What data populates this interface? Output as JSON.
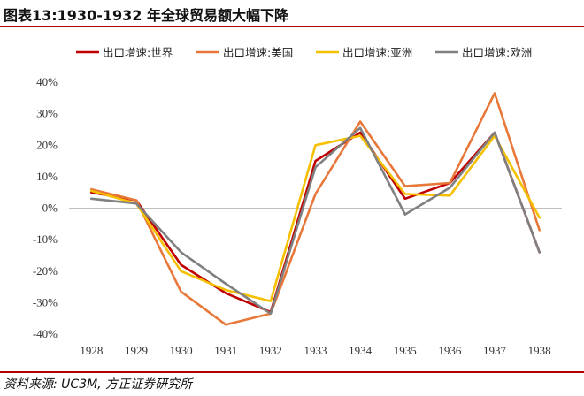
{
  "header": {
    "title": "图表13:1930-1932 年全球贸易额大幅下降"
  },
  "footer": {
    "source": "资料来源: UC3M, 方正证券研究所"
  },
  "chart_data": {
    "type": "line",
    "title": "",
    "xlabel": "",
    "ylabel": "",
    "x": [
      "1928",
      "1929",
      "1930",
      "1931",
      "1932",
      "1933",
      "1934",
      "1935",
      "1936",
      "1937",
      "1938"
    ],
    "ylim": [
      -40,
      40
    ],
    "yticks": [
      "40%",
      "30%",
      "20%",
      "10%",
      "0%",
      "-10%",
      "-20%",
      "-30%",
      "-40%"
    ],
    "legend_position": "top",
    "grid": false,
    "series": [
      {
        "name": "出口增速:世界",
        "color": "#c00000",
        "values": [
          5,
          2.5,
          -18,
          -27,
          -33,
          15,
          24,
          3,
          8,
          24,
          -14
        ]
      },
      {
        "name": "出口增速:美国",
        "color": "#e8783a",
        "values": [
          6,
          2.5,
          -26.5,
          -37,
          -33.5,
          4.5,
          27.5,
          7,
          8,
          36.5,
          -7
        ]
      },
      {
        "name": "出口增速:亚洲",
        "color": "#f5c000",
        "values": [
          5.5,
          1.5,
          -20,
          -26,
          -29.5,
          20,
          23,
          4.5,
          4,
          23,
          -3
        ]
      },
      {
        "name": "出口增速:欧洲",
        "color": "#808080",
        "values": [
          3,
          1.5,
          -14,
          -24,
          -33.5,
          13,
          25.5,
          -2,
          6.5,
          24,
          -14
        ]
      }
    ]
  }
}
